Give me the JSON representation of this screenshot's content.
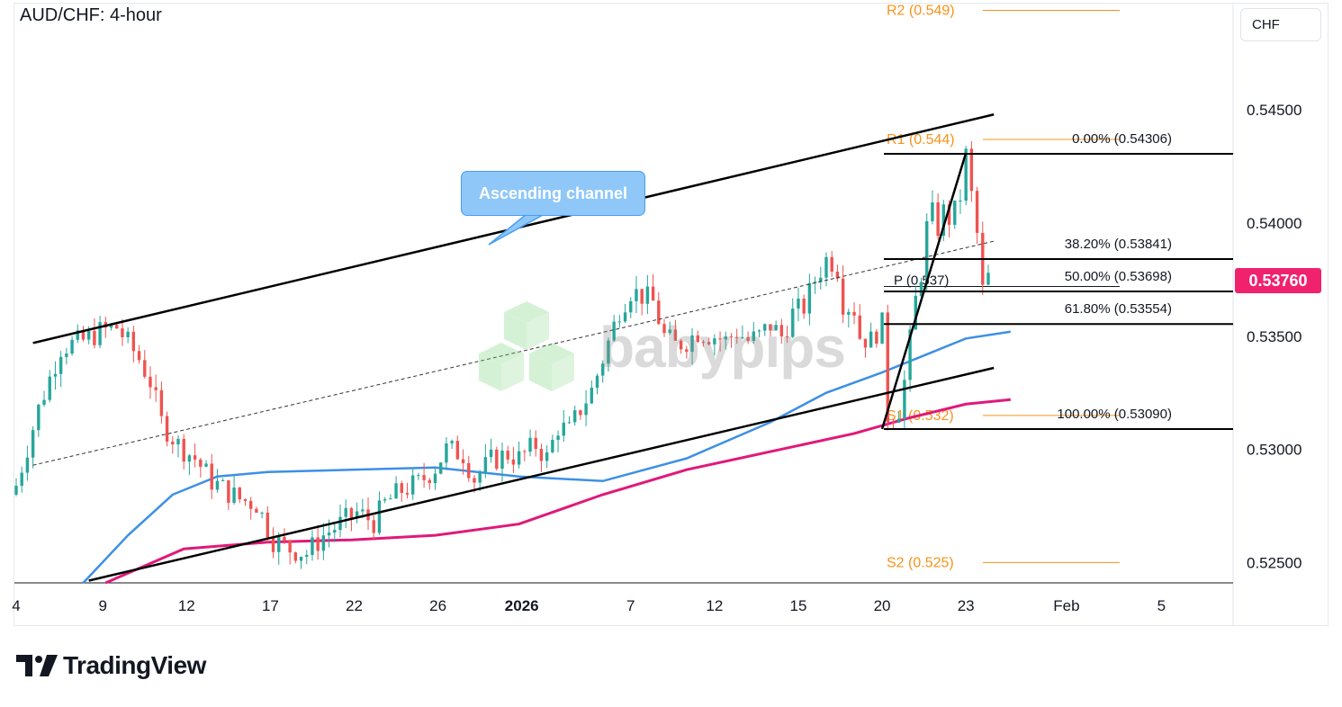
{
  "header": {
    "title": "AUD/CHF: 4-hour",
    "currency": "CHF"
  },
  "price_badge": "0.53760",
  "callout": {
    "text": "Ascending channel"
  },
  "watermark": {
    "text": "babypips"
  },
  "footer": {
    "brand": "TradingView"
  },
  "colors": {
    "up_candle": "#26a69a",
    "down_candle": "#ef5350",
    "sma_100": "#3d8fe6",
    "sma_200": "#e0197a",
    "pivot_lines": "#f7931a",
    "channel": "#000000",
    "price_badge": "#f0226e",
    "callout": "#8fc7f9"
  },
  "chart_data": {
    "type": "candlestick",
    "x_labels": [
      "4",
      "9",
      "12",
      "17",
      "22",
      "26",
      "2026",
      "7",
      "12",
      "15",
      "20",
      "23",
      "Feb",
      "5"
    ],
    "y_ticks": [
      "0.52500",
      "0.53000",
      "0.53500",
      "0.54000",
      "0.54500"
    ],
    "ylim": [
      0.5241,
      0.5497
    ],
    "xlim": [
      0,
      175
    ],
    "x_label_positions": [
      0,
      15.5,
      30.5,
      45.5,
      60.5,
      75.5,
      90.5,
      110,
      125,
      140,
      155,
      170,
      188,
      205
    ],
    "last_price": 0.5376,
    "pivot_levels": [
      {
        "label": "R2 (0.549)",
        "value": 0.5494
      },
      {
        "label": "R1 (0.544)",
        "value": 0.5437
      },
      {
        "label": "P (0.537)",
        "value": 0.5372
      },
      {
        "label": "S1 (0.532)",
        "value": 0.5315
      },
      {
        "label": "S2 (0.525)",
        "value": 0.525
      }
    ],
    "fibonacci_levels": [
      {
        "label": "0.00% (0.54306)",
        "value": 0.54306
      },
      {
        "label": "38.20% (0.53841)",
        "value": 0.53841
      },
      {
        "label": "50.00% (0.53698)",
        "value": 0.53698
      },
      {
        "label": "61.80% (0.53554)",
        "value": 0.53554
      },
      {
        "label": "100.00% (0.53090)",
        "value": 0.5309
      }
    ],
    "channel": {
      "upper": [
        [
          3,
          0.5347
        ],
        [
          175,
          0.5448
        ]
      ],
      "lower": [
        [
          13,
          0.5242
        ],
        [
          175,
          0.5336
        ]
      ],
      "mid": [
        [
          3,
          0.5293
        ],
        [
          175,
          0.5392
        ]
      ]
    },
    "swing_leg": [
      [
        155,
        0.5309
      ],
      [
        170,
        0.5431
      ]
    ],
    "sma_100": [
      [
        12,
        0.5241
      ],
      [
        20,
        0.5262
      ],
      [
        28,
        0.528
      ],
      [
        36,
        0.5288
      ],
      [
        45,
        0.529
      ],
      [
        60,
        0.5291
      ],
      [
        75,
        0.5292
      ],
      [
        90,
        0.5288
      ],
      [
        105,
        0.5286
      ],
      [
        120,
        0.5296
      ],
      [
        135,
        0.5312
      ],
      [
        145,
        0.5325
      ],
      [
        155,
        0.5334
      ],
      [
        163,
        0.5342
      ],
      [
        170,
        0.5349
      ],
      [
        178,
        0.5352
      ]
    ],
    "sma_200": [
      [
        16,
        0.5241
      ],
      [
        30,
        0.5256
      ],
      [
        45,
        0.5259
      ],
      [
        60,
        0.526
      ],
      [
        75,
        0.5262
      ],
      [
        90,
        0.5267
      ],
      [
        105,
        0.528
      ],
      [
        120,
        0.5291
      ],
      [
        135,
        0.5299
      ],
      [
        150,
        0.5307
      ],
      [
        160,
        0.5314
      ],
      [
        170,
        0.532
      ],
      [
        178,
        0.5322
      ]
    ],
    "ohlc_waypoints": [
      [
        0,
        0.5284
      ],
      [
        4,
        0.5318
      ],
      [
        8,
        0.5345
      ],
      [
        12,
        0.5348
      ],
      [
        15,
        0.5352
      ],
      [
        18,
        0.5354
      ],
      [
        22,
        0.534
      ],
      [
        24,
        0.533
      ],
      [
        26,
        0.5312
      ],
      [
        29,
        0.5302
      ],
      [
        32,
        0.5296
      ],
      [
        35,
        0.5286
      ],
      [
        38,
        0.5281
      ],
      [
        40,
        0.5278
      ],
      [
        43,
        0.5276
      ],
      [
        46,
        0.526
      ],
      [
        49,
        0.5256
      ],
      [
        52,
        0.5254
      ],
      [
        55,
        0.5262
      ],
      [
        58,
        0.5267
      ],
      [
        61,
        0.5272
      ],
      [
        64,
        0.5268
      ],
      [
        66,
        0.5276
      ],
      [
        69,
        0.5282
      ],
      [
        72,
        0.5285
      ],
      [
        75,
        0.5292
      ],
      [
        77,
        0.53
      ],
      [
        80,
        0.5298
      ],
      [
        82,
        0.5287
      ],
      [
        85,
        0.5295
      ],
      [
        88,
        0.5298
      ],
      [
        90,
        0.5296
      ],
      [
        93,
        0.5302
      ],
      [
        95,
        0.5296
      ],
      [
        97,
        0.531
      ],
      [
        99,
        0.5308
      ],
      [
        101,
        0.5318
      ],
      [
        103,
        0.5326
      ],
      [
        105,
        0.534
      ],
      [
        108,
        0.5362
      ],
      [
        110,
        0.537
      ],
      [
        112,
        0.5368
      ],
      [
        114,
        0.5365
      ],
      [
        116,
        0.535
      ],
      [
        118,
        0.5346
      ],
      [
        120,
        0.5348
      ],
      [
        122,
        0.5352
      ],
      [
        125,
        0.535
      ],
      [
        127,
        0.5348
      ],
      [
        129,
        0.5352
      ],
      [
        131,
        0.5348
      ],
      [
        133,
        0.535
      ],
      [
        135,
        0.5355
      ],
      [
        137,
        0.535
      ],
      [
        139,
        0.536
      ],
      [
        141,
        0.5363
      ],
      [
        143,
        0.5375
      ],
      [
        145,
        0.5384
      ],
      [
        146,
        0.5383
      ],
      [
        147,
        0.538
      ],
      [
        148,
        0.5365
      ],
      [
        150,
        0.5362
      ],
      [
        151,
        0.535
      ],
      [
        153,
        0.5348
      ],
      [
        154,
        0.5352
      ],
      [
        155,
        0.5355
      ],
      [
        156,
        0.5315
      ],
      [
        157,
        0.5316
      ],
      [
        158,
        0.5318
      ],
      [
        159,
        0.533
      ],
      [
        160,
        0.5348
      ],
      [
        161,
        0.5366
      ],
      [
        162,
        0.5378
      ],
      [
        163,
        0.5398
      ],
      [
        164,
        0.5404
      ],
      [
        165,
        0.5398
      ],
      [
        166,
        0.5405
      ],
      [
        167,
        0.5402
      ],
      [
        168,
        0.5405
      ],
      [
        169,
        0.5412
      ],
      [
        170,
        0.543
      ],
      [
        171,
        0.5412
      ],
      [
        172,
        0.5395
      ],
      [
        173,
        0.537
      ],
      [
        174,
        0.5376
      ]
    ]
  }
}
